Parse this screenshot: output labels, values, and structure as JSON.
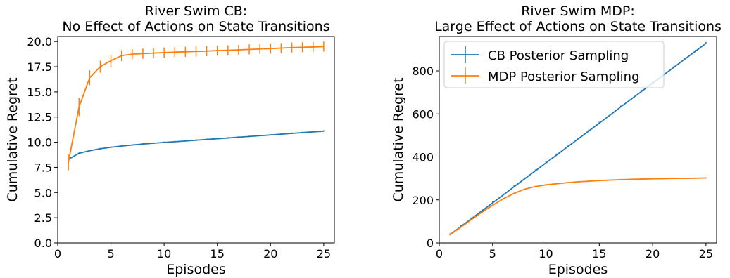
{
  "chart_data": [
    {
      "type": "line",
      "title": "River Swim CB:",
      "subtitle": "No Effect of Actions on State Transitions",
      "xlabel": "Episodes",
      "ylabel": "Cumulative Regret",
      "xlim": [
        0,
        26
      ],
      "ylim": [
        0,
        20.5
      ],
      "xticks": [
        0,
        5,
        10,
        15,
        20,
        25
      ],
      "yticks": [
        0.0,
        2.5,
        5.0,
        7.5,
        10.0,
        12.5,
        15.0,
        17.5,
        20.0
      ],
      "ytick_labels": [
        "0.0",
        "2.5",
        "5.0",
        "7.5",
        "10.0",
        "12.5",
        "15.0",
        "17.5",
        "20.0"
      ],
      "grid": false,
      "legend": "none",
      "series": [
        {
          "color": "#1f77b4",
          "x": [
            1,
            2,
            3,
            4,
            5,
            6,
            7,
            8,
            9,
            10,
            11,
            12,
            13,
            14,
            15,
            16,
            17,
            18,
            19,
            20,
            21,
            22,
            23,
            24,
            25
          ],
          "values": [
            8.3,
            8.9,
            9.15,
            9.35,
            9.5,
            9.62,
            9.72,
            9.82,
            9.9,
            9.98,
            10.05,
            10.12,
            10.2,
            10.27,
            10.35,
            10.42,
            10.5,
            10.57,
            10.65,
            10.72,
            10.8,
            10.88,
            10.95,
            11.03,
            11.1
          ],
          "errors": [
            0.05,
            0.05,
            0.05,
            0.05,
            0.05,
            0.05,
            0.05,
            0.05,
            0.05,
            0.05,
            0.05,
            0.05,
            0.05,
            0.05,
            0.05,
            0.05,
            0.05,
            0.05,
            0.05,
            0.05,
            0.05,
            0.05,
            0.05,
            0.05,
            0.05
          ]
        },
        {
          "color": "#ff7f0e",
          "x": [
            1,
            2,
            3,
            4,
            5,
            6,
            7,
            8,
            9,
            10,
            11,
            12,
            13,
            14,
            15,
            16,
            17,
            18,
            19,
            20,
            21,
            22,
            23,
            24,
            25
          ],
          "values": [
            8.0,
            13.5,
            16.4,
            17.5,
            18.1,
            18.6,
            18.75,
            18.8,
            18.85,
            18.9,
            18.95,
            18.98,
            19.02,
            19.05,
            19.1,
            19.13,
            19.17,
            19.22,
            19.26,
            19.3,
            19.35,
            19.4,
            19.43,
            19.46,
            19.5
          ],
          "errors": [
            0.8,
            0.9,
            0.75,
            0.6,
            0.6,
            0.55,
            0.5,
            0.5,
            0.5,
            0.5,
            0.5,
            0.5,
            0.5,
            0.5,
            0.5,
            0.5,
            0.5,
            0.5,
            0.5,
            0.5,
            0.5,
            0.5,
            0.5,
            0.5,
            0.5
          ]
        }
      ]
    },
    {
      "type": "line",
      "title": "River Swim MDP:",
      "subtitle": "Large Effect of Actions on State Transitions",
      "xlabel": "Episodes",
      "ylabel": "Cumulative Regret",
      "xlim": [
        0,
        26
      ],
      "ylim": [
        0,
        960
      ],
      "xticks": [
        0,
        5,
        10,
        15,
        20,
        25
      ],
      "yticks": [
        0,
        200,
        400,
        600,
        800
      ],
      "ytick_labels": [
        "0",
        "200",
        "400",
        "600",
        "800"
      ],
      "grid": false,
      "legend": "upper-left",
      "series": [
        {
          "name": "CB Posterior Sampling",
          "color": "#1f77b4",
          "x": [
            1,
            2,
            3,
            4,
            5,
            6,
            7,
            8,
            9,
            10,
            11,
            12,
            13,
            14,
            15,
            16,
            17,
            18,
            19,
            20,
            21,
            22,
            23,
            24,
            25
          ],
          "values": [
            38,
            75,
            112,
            149,
            186,
            223,
            261,
            298,
            335,
            372,
            409,
            446,
            483,
            520,
            557,
            594,
            632,
            669,
            706,
            743,
            780,
            817,
            854,
            891,
            928
          ],
          "errors": [
            0,
            0,
            0,
            0,
            0,
            0,
            0,
            0,
            0,
            0,
            0,
            0,
            0,
            0,
            0,
            0,
            0,
            0,
            0,
            0,
            0,
            0,
            0,
            0,
            0
          ]
        },
        {
          "name": "MDP Posterior Sampling",
          "color": "#ff7f0e",
          "x": [
            1,
            2,
            3,
            4,
            5,
            6,
            7,
            8,
            9,
            10,
            11,
            12,
            13,
            14,
            15,
            16,
            17,
            18,
            19,
            20,
            21,
            22,
            23,
            24,
            25
          ],
          "values": [
            38,
            72,
            108,
            143,
            175,
            205,
            230,
            250,
            262,
            270,
            275,
            280,
            284,
            287,
            290,
            292,
            294,
            296,
            297,
            298,
            299,
            300,
            300,
            301,
            302
          ],
          "errors": [
            3,
            3,
            3,
            3,
            3,
            3,
            3,
            3,
            3,
            3,
            3,
            3,
            3,
            3,
            3,
            3,
            3,
            3,
            3,
            3,
            3,
            3,
            3,
            3,
            3
          ]
        }
      ]
    }
  ]
}
